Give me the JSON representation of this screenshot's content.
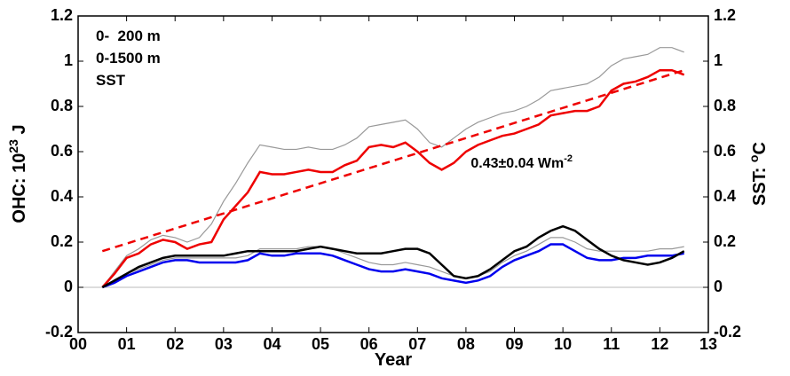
{
  "chart_data": {
    "type": "line",
    "x_label": "Year",
    "y_label": {
      "text": "OHC: 10",
      "superscript": "23",
      "unit": " J"
    },
    "y2_label": {
      "text": "SST: ",
      "superscript": "o",
      "unit": "C"
    },
    "xlim": [
      0,
      13
    ],
    "xticks": [
      {
        "value": 0,
        "label": "00"
      },
      {
        "value": 1,
        "label": "01"
      },
      {
        "value": 2,
        "label": "02"
      },
      {
        "value": 3,
        "label": "03"
      },
      {
        "value": 4,
        "label": "04"
      },
      {
        "value": 5,
        "label": "05"
      },
      {
        "value": 6,
        "label": "06"
      },
      {
        "value": 7,
        "label": "07"
      },
      {
        "value": 8,
        "label": "08"
      },
      {
        "value": 9,
        "label": "09"
      },
      10,
      11,
      12,
      13
    ],
    "ylim": [
      -0.2,
      1.2
    ],
    "yticks": [
      -0.2,
      0,
      0.2,
      0.4,
      0.6,
      0.8,
      1,
      1.2
    ],
    "y2lim": [
      -0.2,
      1.2
    ],
    "y2ticks": [
      -0.2,
      0,
      0.2,
      0.4,
      0.6,
      0.8,
      1,
      1.2
    ],
    "x": [
      0.5,
      0.75,
      1,
      1.25,
      1.5,
      1.75,
      2,
      2.25,
      2.5,
      2.75,
      3,
      3.25,
      3.5,
      3.75,
      4,
      4.25,
      4.5,
      4.75,
      5,
      5.25,
      5.5,
      5.75,
      6,
      6.25,
      6.5,
      6.75,
      7,
      7.25,
      7.5,
      7.75,
      8,
      8.25,
      8.5,
      8.75,
      9,
      9.25,
      9.5,
      9.75,
      10,
      10.25,
      10.5,
      10.75,
      11,
      11.25,
      11.5,
      11.75,
      12,
      12.25,
      12.5
    ],
    "series": [
      {
        "color": "#999999",
        "values": [
          0,
          0.07,
          0.14,
          0.17,
          0.21,
          0.23,
          0.22,
          0.2,
          0.22,
          0.28,
          0.38,
          0.46,
          0.55,
          0.63,
          0.62,
          0.61,
          0.61,
          0.62,
          0.61,
          0.61,
          0.63,
          0.66,
          0.71,
          0.72,
          0.73,
          0.74,
          0.7,
          0.64,
          0.62,
          0.66,
          0.7,
          0.73,
          0.75,
          0.77,
          0.78,
          0.8,
          0.83,
          0.87,
          0.88,
          0.89,
          0.9,
          0.93,
          0.98,
          1.01,
          1.02,
          1.03,
          1.06,
          1.06,
          1.04
        ]
      },
      {
        "color": "#999999",
        "values": [
          0,
          0.03,
          0.06,
          0.08,
          0.1,
          0.12,
          0.13,
          0.13,
          0.13,
          0.13,
          0.13,
          0.13,
          0.14,
          0.17,
          0.17,
          0.17,
          0.17,
          0.18,
          0.18,
          0.17,
          0.15,
          0.13,
          0.11,
          0.1,
          0.1,
          0.11,
          0.1,
          0.09,
          0.07,
          0.05,
          0.04,
          0.05,
          0.07,
          0.11,
          0.14,
          0.16,
          0.19,
          0.22,
          0.22,
          0.2,
          0.17,
          0.16,
          0.16,
          0.16,
          0.16,
          0.16,
          0.17,
          0.17,
          0.18
        ]
      },
      {
        "name": "0-  200 m",
        "color": "#0000ee",
        "values": [
          0,
          0.02,
          0.05,
          0.07,
          0.09,
          0.11,
          0.12,
          0.12,
          0.11,
          0.11,
          0.11,
          0.11,
          0.12,
          0.15,
          0.14,
          0.14,
          0.15,
          0.15,
          0.15,
          0.14,
          0.12,
          0.1,
          0.08,
          0.07,
          0.07,
          0.08,
          0.07,
          0.06,
          0.04,
          0.03,
          0.02,
          0.03,
          0.05,
          0.09,
          0.12,
          0.14,
          0.16,
          0.19,
          0.19,
          0.16,
          0.13,
          0.12,
          0.12,
          0.13,
          0.13,
          0.14,
          0.14,
          0.14,
          0.15
        ]
      },
      {
        "name": "0-1500 m",
        "color": "#ee0000",
        "values": [
          0,
          0.06,
          0.13,
          0.15,
          0.19,
          0.21,
          0.2,
          0.17,
          0.19,
          0.2,
          0.3,
          0.36,
          0.42,
          0.51,
          0.5,
          0.5,
          0.51,
          0.52,
          0.51,
          0.51,
          0.54,
          0.56,
          0.62,
          0.63,
          0.62,
          0.64,
          0.6,
          0.55,
          0.52,
          0.55,
          0.6,
          0.63,
          0.65,
          0.67,
          0.68,
          0.7,
          0.72,
          0.76,
          0.77,
          0.78,
          0.78,
          0.8,
          0.87,
          0.9,
          0.91,
          0.93,
          0.96,
          0.96,
          0.94
        ]
      },
      {
        "name": "SST",
        "color": "#000000",
        "axis": "y2",
        "values": [
          0,
          0.03,
          0.06,
          0.09,
          0.11,
          0.13,
          0.14,
          0.14,
          0.14,
          0.14,
          0.14,
          0.15,
          0.16,
          0.16,
          0.16,
          0.16,
          0.16,
          0.17,
          0.18,
          0.17,
          0.16,
          0.15,
          0.15,
          0.15,
          0.16,
          0.17,
          0.17,
          0.15,
          0.1,
          0.05,
          0.04,
          0.05,
          0.08,
          0.12,
          0.16,
          0.18,
          0.22,
          0.25,
          0.27,
          0.25,
          0.21,
          0.17,
          0.14,
          0.12,
          0.11,
          0.1,
          0.11,
          0.13,
          0.16
        ]
      }
    ],
    "trend": {
      "x": [
        0.5,
        12.5
      ],
      "values": [
        0.16,
        0.96
      ],
      "color": "#ee0000"
    },
    "annotation": {
      "text": "0.43±0.04 Wm",
      "superscript": "-2",
      "color": "#ee0000",
      "x": 8.1,
      "y": 0.53
    },
    "legend": "upper left"
  }
}
